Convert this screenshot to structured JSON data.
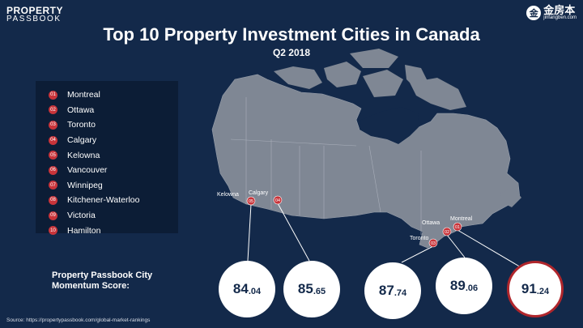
{
  "brand": {
    "left_line1": "PROPERTY",
    "left_line2": "PASSBOOK",
    "right_cn": "金房本",
    "right_url": "jinfangben.com",
    "right_mark": "金"
  },
  "title": "Top 10 Property Investment Cities in Canada",
  "subtitle": "Q2 2018",
  "legend": [
    {
      "num": "01",
      "name": "Montreal"
    },
    {
      "num": "02",
      "name": "Ottawa"
    },
    {
      "num": "03",
      "name": "Toronto"
    },
    {
      "num": "04",
      "name": "Calgary"
    },
    {
      "num": "05",
      "name": "Kelowna"
    },
    {
      "num": "06",
      "name": "Vancouver"
    },
    {
      "num": "07",
      "name": "Winnipeg"
    },
    {
      "num": "08",
      "name": "Kitchener-Waterloo"
    },
    {
      "num": "09",
      "name": "Victoria"
    },
    {
      "num": "10",
      "name": "Hamilton"
    }
  ],
  "map_labels": {
    "kelowna": {
      "name": "Kelowna",
      "num": "05"
    },
    "calgary": {
      "name": "Calgary",
      "num": "04"
    },
    "toronto": {
      "name": "Toronto",
      "num": "03"
    },
    "ottawa": {
      "name": "Ottawa",
      "num": "02"
    },
    "montreal": {
      "name": "Montreal",
      "num": "01"
    }
  },
  "score_label": "Property Passbook City Momentum Score:",
  "scores": [
    {
      "city": "Kelowna",
      "int": "84",
      "dec": ".04",
      "value": 84.04,
      "highlight": false
    },
    {
      "city": "Calgary",
      "int": "85",
      "dec": ".65",
      "value": 85.65,
      "highlight": false
    },
    {
      "city": "Toronto",
      "int": "87",
      "dec": ".74",
      "value": 87.74,
      "highlight": false
    },
    {
      "city": "Ottawa",
      "int": "89",
      "dec": ".06",
      "value": 89.06,
      "highlight": false
    },
    {
      "city": "Montreal",
      "int": "91",
      "dec": ".24",
      "value": 91.24,
      "highlight": true
    }
  ],
  "colors": {
    "background": "#13294a",
    "land": "#7f8794",
    "pin": "#c8343a",
    "highlight_ring": "#b0262c"
  },
  "source": "Source: https://propertypassbook.com/global-market-rankings"
}
